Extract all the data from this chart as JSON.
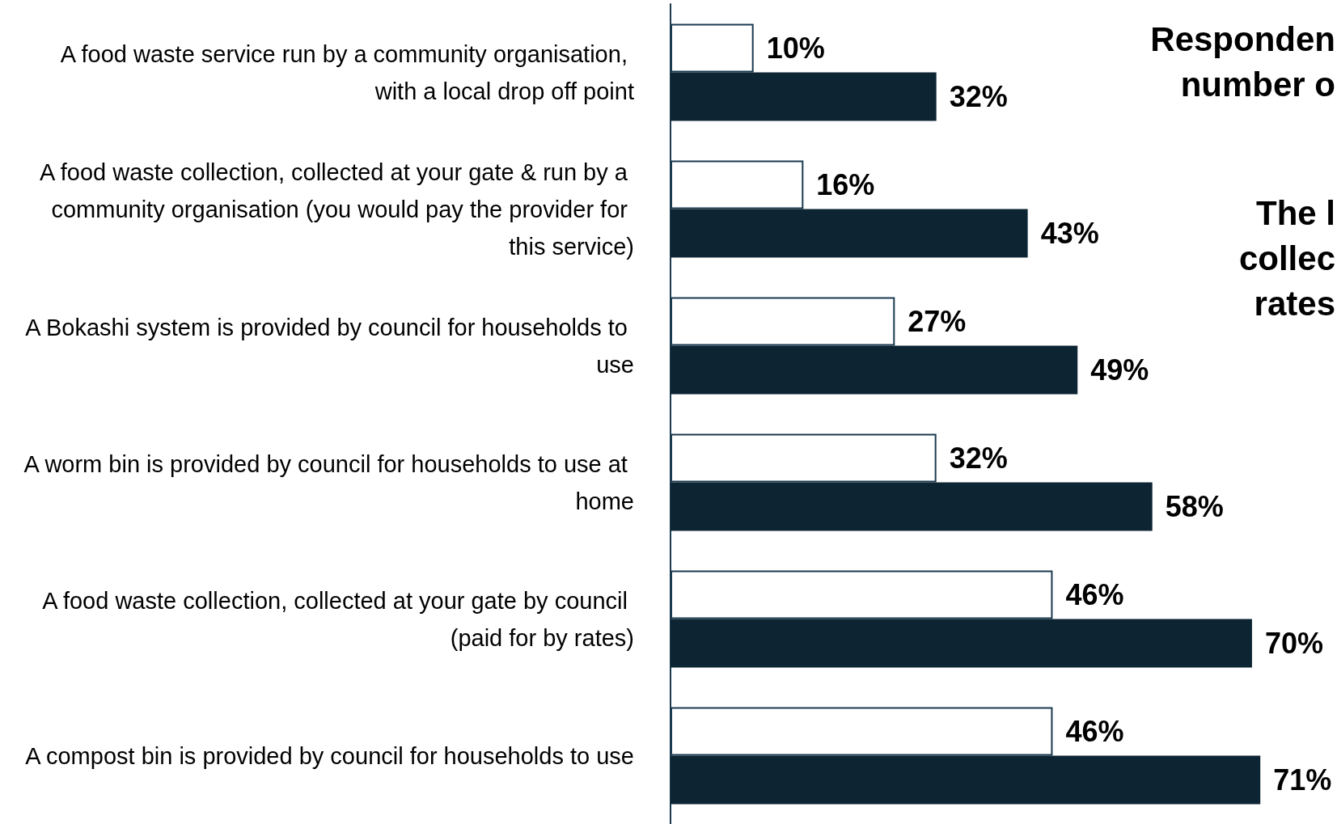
{
  "chart_data": {
    "type": "bar",
    "orientation": "horizontal",
    "categories": [
      "A food waste service run by a community organisation, with a local drop off point",
      "A food waste collection, collected at your gate & run by a community organisation (you would pay the provider for this service)",
      "A Bokashi system is provided by council for households to use",
      "A worm bin is provided by council for households to use at home",
      "A food waste collection, collected at your gate by council (paid for by rates)",
      "A compost bin is provided by council for households to use"
    ],
    "series": [
      {
        "color": "#ffffff",
        "values": [
          10,
          16,
          27,
          32,
          46,
          46
        ],
        "value_labels": [
          "10%",
          "16%",
          "27%",
          "32%",
          "46%",
          "46%"
        ]
      },
      {
        "color": "#0d2433",
        "values": [
          32,
          43,
          49,
          58,
          70,
          71
        ],
        "value_labels": [
          "32%",
          "43%",
          "49%",
          "58%",
          "70%",
          "71%"
        ]
      }
    ],
    "annotations": [
      "Responden\nnumber o",
      "The l\ncollec\nrates"
    ]
  }
}
